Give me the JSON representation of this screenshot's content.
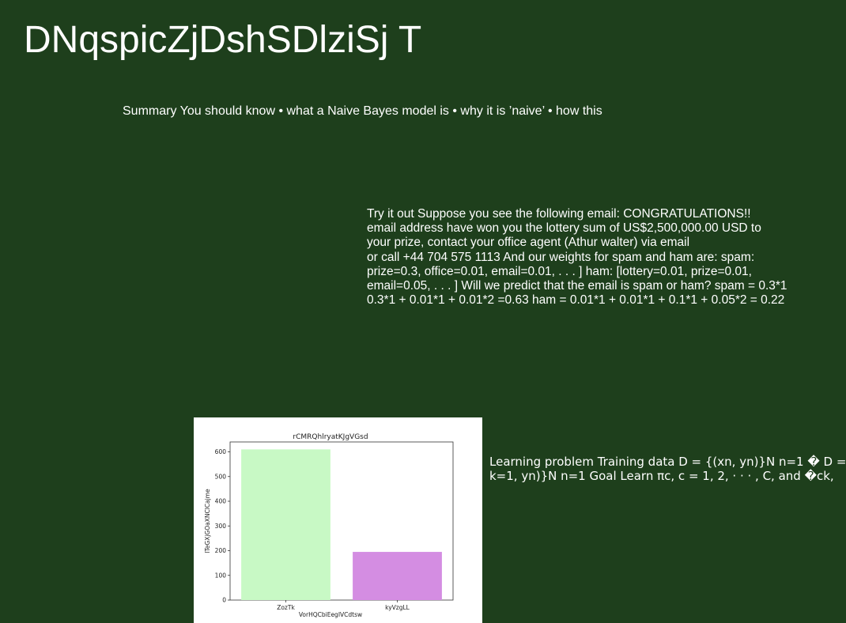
{
  "slide": {
    "title": "DNqspicZjDshSDlziSj T",
    "background": "#1e3f1c"
  },
  "summary": {
    "text": "Summary You should know • what a Naive Bayes model is • why it is ’naive’ • how this"
  },
  "tryit": {
    "lines": [
      "Try it out Suppose you see the following email: CONGRATULATIONS!!",
      "email address have won you the lottery sum of US$2,500,000.00 USD to",
      "your prize, contact your office agent (Athur walter) via email",
      "or call +44 704 575 1113 And our weights for spam and ham are: spam:",
      "prize=0.3, office=0.01, email=0.01, . . . ] ham: [lottery=0.01, prize=0.01,",
      "email=0.05, . . . ] Will we predict that the email is spam or ham? spam = 0.3*1",
      "0.3*1 + 0.01*1 + 0.01*2 =0.63 ham = 0.01*1 + 0.01*1 + 0.1*1 + 0.05*2 = 0.22"
    ]
  },
  "learning": {
    "lines": [
      "Learning problem Training data D = {(xn, yn)}N n=1 � D =",
      "k=1, yn)}N n=1 Goal Learn πc, c = 1, 2, · · · , C, and �ck,"
    ]
  },
  "chart_data": {
    "type": "bar",
    "title": "rCMRQhlryatKJgVGsd",
    "xlabel": "VorHQCbiEegIVCdtsw",
    "ylabel": "lTeGXjGOaXNClCajme",
    "categories": [
      "ZozTk",
      "kyVzgLL"
    ],
    "values": [
      610,
      195
    ],
    "colors": [
      "#c8f9c5",
      "#d48de2"
    ],
    "ylim": [
      0,
      640
    ],
    "yticks": [
      0,
      100,
      200,
      300,
      400,
      500,
      600
    ],
    "grid": false
  }
}
